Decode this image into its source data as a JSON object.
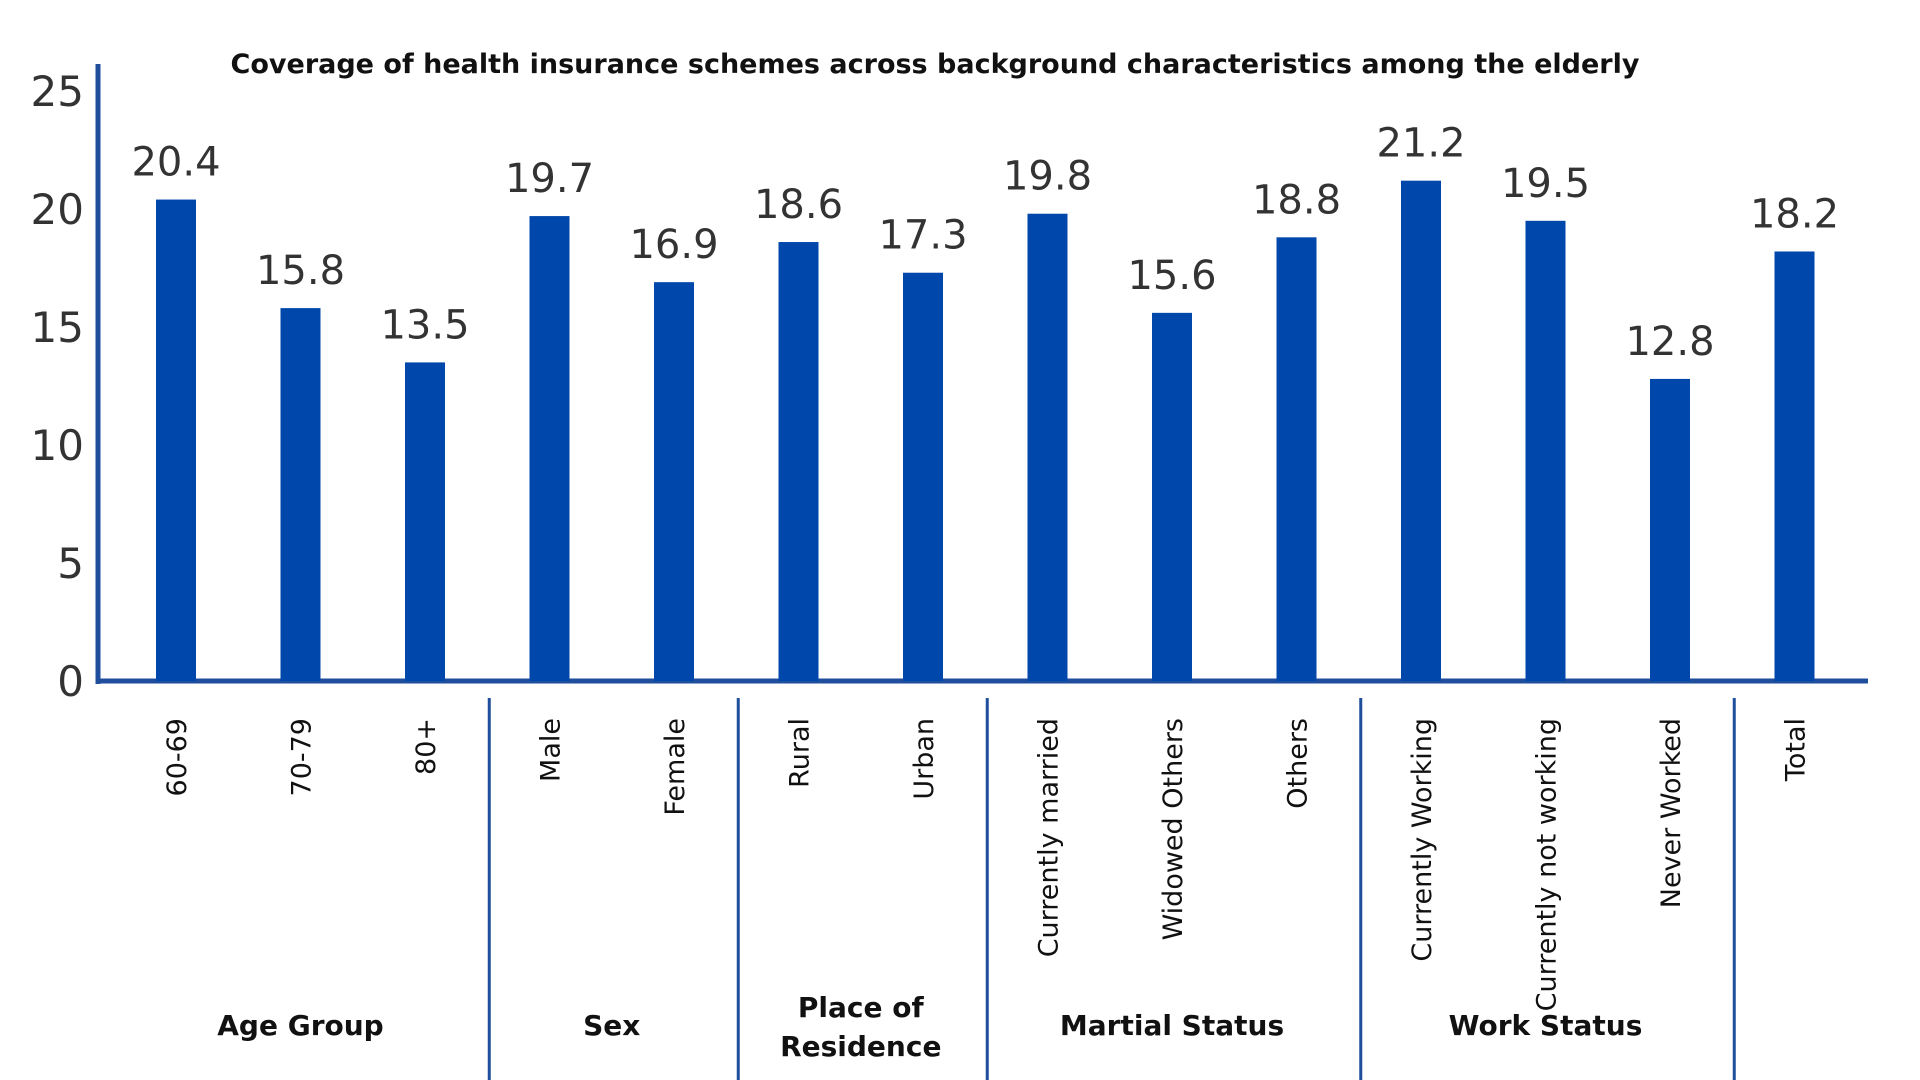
{
  "chart_data": {
    "type": "bar",
    "title": "Coverage of health insurance schemes across background characteristics among the elderly",
    "xlabel": "",
    "ylabel": "",
    "ylim": [
      0,
      25
    ],
    "yticks": [
      "0",
      "5",
      "10",
      "15",
      "20",
      "25"
    ],
    "categories": [
      "60-69",
      "70-79",
      "80+",
      "Male",
      "Female",
      "Rural",
      "Urban",
      "Currently married",
      "Widowed Others",
      "Others",
      "Currently Working",
      "Currently not working",
      "Never Worked",
      "Total"
    ],
    "values": [
      20.4,
      15.8,
      13.5,
      19.7,
      16.9,
      18.6,
      17.3,
      19.8,
      15.6,
      18.8,
      21.2,
      19.5,
      12.8,
      18.2
    ],
    "value_labels": [
      "20.4",
      "15.8",
      "13.5",
      "19.7",
      "16.9",
      "18.6",
      "17.3",
      "19.8",
      "15.6",
      "18.8",
      "21.2",
      "19.5",
      "12.8",
      "18.2"
    ],
    "groups": [
      {
        "lines": [
          "Age Group"
        ],
        "start": 0,
        "end": 2
      },
      {
        "lines": [
          "Sex"
        ],
        "start": 3,
        "end": 4
      },
      {
        "lines": [
          "Place of",
          "Residence"
        ],
        "start": 5,
        "end": 6
      },
      {
        "lines": [
          "Martial Status"
        ],
        "start": 7,
        "end": 9
      },
      {
        "lines": [
          "Work Status"
        ],
        "start": 10,
        "end": 12
      }
    ],
    "grid": false,
    "legend": "none",
    "bar_color": "#0047AB",
    "axis_color": "#1F4E9C"
  }
}
